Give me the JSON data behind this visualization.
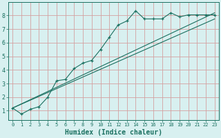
{
  "title": "",
  "xlabel": "Humidex (Indice chaleur)",
  "bg_color": "#d8f0f0",
  "grid_color": "#d4a0a0",
  "line_color": "#1a7060",
  "xlim": [
    -0.5,
    23.5
  ],
  "ylim": [
    0.3,
    9.0
  ],
  "xticks": [
    0,
    1,
    2,
    3,
    4,
    5,
    6,
    7,
    8,
    9,
    10,
    11,
    12,
    13,
    14,
    15,
    16,
    17,
    18,
    19,
    20,
    21,
    22,
    23
  ],
  "yticks": [
    1,
    2,
    3,
    4,
    5,
    6,
    7,
    8
  ],
  "series1_x": [
    0,
    1,
    2,
    3,
    4,
    5,
    6,
    7,
    8,
    9,
    10,
    11,
    12,
    13,
    14,
    15,
    16,
    17,
    18,
    19,
    20,
    21,
    22,
    23
  ],
  "series1_y": [
    1.2,
    0.75,
    1.1,
    1.3,
    2.0,
    3.2,
    3.3,
    4.1,
    4.5,
    4.7,
    5.5,
    6.4,
    7.3,
    7.6,
    8.35,
    7.75,
    7.75,
    7.75,
    8.2,
    7.9,
    8.05,
    8.05,
    8.05,
    8.05
  ],
  "series2_x": [
    0,
    23
  ],
  "series2_y": [
    1.2,
    8.2
  ],
  "series3_x": [
    0,
    23
  ],
  "series3_y": [
    1.2,
    7.75
  ],
  "xlabel_fontsize": 7,
  "tick_fontsize": 5,
  "lw": 0.8
}
